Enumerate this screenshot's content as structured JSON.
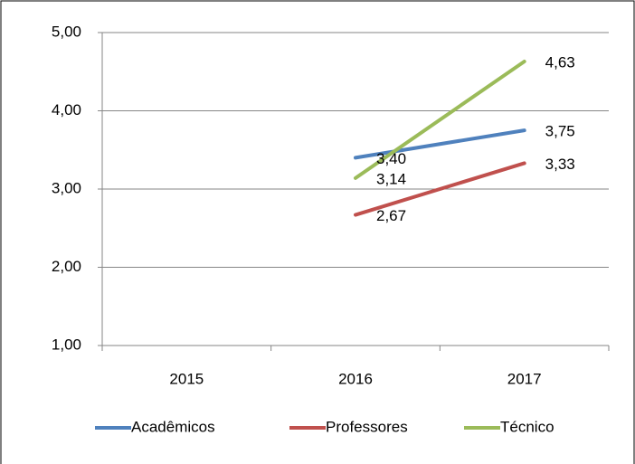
{
  "chart_data": {
    "type": "line",
    "categories": [
      "2015",
      "2016",
      "2017"
    ],
    "series": [
      {
        "name": "Acadêmicos",
        "color": "#4f81bd",
        "values": [
          null,
          3.4,
          3.75
        ],
        "value_labels": [
          null,
          "3,40",
          "3,75"
        ]
      },
      {
        "name": "Professores",
        "color": "#c0504d",
        "values": [
          null,
          2.67,
          3.33
        ],
        "value_labels": [
          null,
          "2,67",
          "3,33"
        ]
      },
      {
        "name": "Técnico",
        "color": "#9bbb59",
        "values": [
          null,
          3.14,
          4.63
        ],
        "value_labels": [
          null,
          "3,14",
          "4,63"
        ]
      }
    ],
    "ylim": [
      1,
      5
    ],
    "yticks": [
      {
        "value": 1,
        "label": "1,00"
      },
      {
        "value": 2,
        "label": "2,00"
      },
      {
        "value": 3,
        "label": "3,00"
      },
      {
        "value": 4,
        "label": "4,00"
      },
      {
        "value": 5,
        "label": "5,00"
      }
    ],
    "grid": true,
    "legend": "bottom"
  }
}
